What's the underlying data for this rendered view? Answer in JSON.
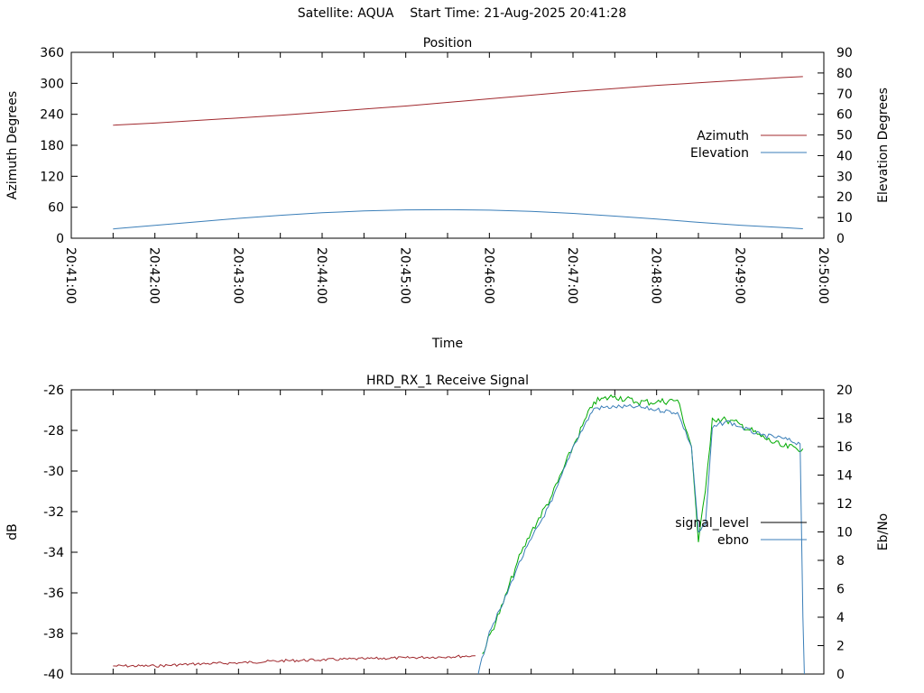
{
  "header": {
    "title": "Satellite: AQUA    Start Time: 21-Aug-2025 20:41:28"
  },
  "chart_data": [
    {
      "type": "line",
      "title": "Position",
      "xlabel": "Time",
      "ylabel": "Azimuth Degrees",
      "y2label": "Elevation Degrees",
      "x_ticks": [
        "20:41:00",
        "20:42:00",
        "20:43:00",
        "20:44:00",
        "20:45:00",
        "20:46:00",
        "20:47:00",
        "20:48:00",
        "20:49:00",
        "20:50:00"
      ],
      "xlim": [
        "20:41:00",
        "20:50:00"
      ],
      "ylim": [
        0,
        360
      ],
      "y2lim": [
        0,
        90
      ],
      "y_ticks": [
        0,
        60,
        120,
        180,
        240,
        300,
        360
      ],
      "y2_ticks": [
        0,
        10,
        20,
        30,
        40,
        50,
        60,
        70,
        80,
        90
      ],
      "legend_position": "right",
      "series": [
        {
          "name": "Azimuth",
          "axis": "y",
          "color": "#a0282d",
          "x": [
            "20:41:30",
            "20:42:00",
            "20:42:30",
            "20:43:00",
            "20:43:30",
            "20:44:00",
            "20:44:30",
            "20:45:00",
            "20:45:30",
            "20:46:00",
            "20:46:30",
            "20:47:00",
            "20:47:30",
            "20:48:00",
            "20:48:30",
            "20:49:00",
            "20:49:30",
            "20:49:45"
          ],
          "values": [
            219,
            223,
            228,
            233,
            238,
            244,
            250,
            256,
            263,
            270,
            277,
            284,
            290,
            296,
            301,
            306,
            311,
            313
          ]
        },
        {
          "name": "Elevation",
          "axis": "y2",
          "color": "#3a7eb8",
          "x": [
            "20:41:30",
            "20:42:00",
            "20:42:30",
            "20:43:00",
            "20:43:30",
            "20:44:00",
            "20:44:30",
            "20:45:00",
            "20:45:30",
            "20:46:00",
            "20:46:30",
            "20:47:00",
            "20:47:30",
            "20:48:00",
            "20:48:30",
            "20:49:00",
            "20:49:30",
            "20:49:45"
          ],
          "values": [
            4.5,
            6.2,
            7.9,
            9.6,
            11.1,
            12.3,
            13.2,
            13.7,
            13.8,
            13.6,
            13.0,
            12.0,
            10.7,
            9.3,
            7.7,
            6.3,
            5.2,
            4.6
          ]
        }
      ]
    },
    {
      "type": "line",
      "title": "HRD_RX_1 Receive Signal",
      "xlabel": "",
      "ylabel": "dB",
      "y2label": "Eb/No",
      "xlim": [
        "20:41:00",
        "20:50:00"
      ],
      "ylim": [
        -40,
        -26
      ],
      "y2lim": [
        0,
        20
      ],
      "y_ticks": [
        -40,
        -38,
        -36,
        -34,
        -32,
        -30,
        -28,
        -26
      ],
      "y2_ticks": [
        0,
        2,
        4,
        6,
        8,
        10,
        12,
        14,
        16,
        18,
        20
      ],
      "legend_position": "right",
      "legend": [
        {
          "name": "signal_level",
          "color": "#000000"
        },
        {
          "name": "ebno",
          "color": "#3a7eb8"
        }
      ],
      "series": [
        {
          "name": "signal_level (low)",
          "axis": "y",
          "color": "#a0282d",
          "x": [
            "20:41:30",
            "20:42:00",
            "20:42:30",
            "20:43:00",
            "20:43:30",
            "20:44:00",
            "20:44:30",
            "20:45:00",
            "20:45:30",
            "20:45:50"
          ],
          "values": [
            -39.6,
            -39.6,
            -39.5,
            -39.45,
            -39.35,
            -39.3,
            -39.25,
            -39.2,
            -39.15,
            -39.1
          ]
        },
        {
          "name": "signal_level (high)",
          "axis": "y",
          "color": "#00aa00",
          "x": [
            "20:45:55",
            "20:46:10",
            "20:46:20",
            "20:46:30",
            "20:46:45",
            "20:47:00",
            "20:47:15",
            "20:47:30",
            "20:47:45",
            "20:48:00",
            "20:48:15",
            "20:48:25",
            "20:48:30",
            "20:48:35",
            "20:48:40",
            "20:48:50",
            "20:49:00",
            "20:49:15",
            "20:49:30",
            "20:49:45"
          ],
          "values": [
            -39.0,
            -36.5,
            -34.5,
            -33.0,
            -31.2,
            -28.8,
            -26.6,
            -26.3,
            -26.6,
            -26.6,
            -26.5,
            -28.8,
            -33.5,
            -31.0,
            -27.4,
            -27.5,
            -27.7,
            -28.3,
            -28.8,
            -28.9
          ]
        },
        {
          "name": "ebno",
          "axis": "y2",
          "color": "#3a7eb8",
          "x": [
            "20:45:52",
            "20:46:00",
            "20:46:10",
            "20:46:20",
            "20:46:30",
            "20:46:45",
            "20:47:00",
            "20:47:15",
            "20:47:30",
            "20:47:45",
            "20:48:00",
            "20:48:15",
            "20:48:25",
            "20:48:30",
            "20:48:35",
            "20:48:40",
            "20:48:50",
            "20:49:00",
            "20:49:15",
            "20:49:30",
            "20:49:43",
            "20:49:45",
            "20:49:46"
          ],
          "values": [
            0,
            3.0,
            5.0,
            7.5,
            9.5,
            12.2,
            16.0,
            18.7,
            18.8,
            18.8,
            18.6,
            18.4,
            16.0,
            10.0,
            10.5,
            17.3,
            17.8,
            17.4,
            16.8,
            16.6,
            16.2,
            4.0,
            0
          ]
        }
      ]
    }
  ]
}
